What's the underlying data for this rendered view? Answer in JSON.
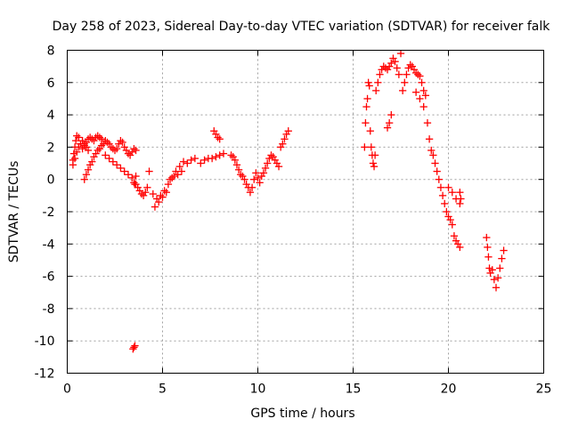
{
  "chart_data": {
    "type": "scatter",
    "title": "Day 258 of 2023, Sidereal Day-to-day VTEC variation (SDTVAR) for receiver falk",
    "xlabel": "GPS time / hours",
    "ylabel": "SDTVAR / TECUs",
    "xlim": [
      0,
      25
    ],
    "ylim": [
      -12,
      8
    ],
    "xticks": [
      0,
      5,
      10,
      15,
      20,
      25
    ],
    "yticks": [
      -12,
      -10,
      -8,
      -6,
      -4,
      -2,
      0,
      2,
      4,
      6,
      8
    ],
    "xtick_labels": [
      "0",
      "5",
      "10",
      "15",
      "20",
      "25"
    ],
    "ytick_labels": [
      "-12",
      "-10",
      "-8",
      "-6",
      "-4",
      "-2",
      "0",
      "2",
      "4",
      "6",
      "8"
    ],
    "grid": true,
    "marker": "+",
    "marker_color": "#ff0000",
    "series": [
      {
        "name": "SDTVAR",
        "x": [
          0.3,
          0.35,
          0.4,
          0.45,
          0.5,
          0.6,
          0.7,
          0.8,
          0.9,
          1.0,
          1.1,
          1.2,
          1.3,
          1.4,
          1.5,
          1.6,
          1.7,
          1.8,
          0.3,
          0.4,
          0.5,
          0.6,
          0.7,
          0.8,
          0.9,
          1.0,
          1.1,
          0.9,
          1.0,
          1.1,
          1.2,
          1.3,
          1.4,
          1.5,
          1.6,
          1.7,
          1.8,
          1.9,
          2.0,
          2.1,
          2.2,
          2.3,
          2.4,
          2.5,
          2.6,
          2.7,
          2.8,
          2.9,
          3.0,
          3.1,
          3.2,
          3.3,
          3.4,
          3.5,
          3.6,
          2.0,
          2.2,
          2.4,
          2.6,
          2.8,
          3.0,
          3.2,
          3.4,
          3.6,
          3.5,
          3.55,
          3.6,
          3.7,
          3.8,
          3.9,
          4.0,
          4.1,
          4.2,
          4.3,
          4.5,
          4.7,
          4.9,
          5.1,
          5.3,
          5.5,
          5.7,
          5.9,
          6.1,
          6.3,
          6.5,
          6.7,
          5.4,
          5.6,
          5.8,
          6.0,
          4.6,
          4.8,
          5.0,
          5.2,
          7.0,
          7.2,
          7.4,
          7.6,
          7.8,
          8.0,
          8.2,
          7.7,
          7.8,
          7.9,
          8.0,
          8.6,
          8.7,
          8.8,
          8.9,
          9.0,
          9.1,
          9.2,
          9.3,
          9.4,
          9.5,
          9.6,
          9.7,
          9.8,
          9.9,
          10.0,
          10.1,
          10.2,
          10.3,
          10.4,
          10.5,
          10.6,
          10.7,
          10.8,
          10.9,
          11.0,
          11.1,
          11.2,
          11.3,
          11.4,
          11.5,
          11.6,
          3.45,
          3.5,
          3.55,
          15.6,
          15.65,
          15.7,
          15.75,
          15.8,
          15.85,
          15.9,
          15.95,
          16.0,
          16.05,
          16.1,
          16.15,
          16.2,
          16.3,
          16.4,
          16.5,
          16.6,
          16.7,
          16.8,
          16.9,
          17.0,
          17.1,
          17.2,
          17.3,
          17.4,
          17.5,
          16.8,
          16.9,
          17.0,
          17.6,
          17.7,
          17.8,
          17.9,
          18.0,
          18.1,
          18.2,
          18.3,
          18.4,
          18.5,
          18.6,
          18.7,
          18.8,
          18.3,
          18.5,
          18.7,
          18.9,
          19.0,
          19.1,
          19.2,
          19.3,
          19.4,
          19.5,
          19.6,
          19.7,
          19.8,
          19.9,
          20.0,
          20.1,
          20.2,
          20.3,
          20.4,
          20.5,
          20.6,
          20.0,
          20.2,
          20.4,
          20.6,
          20.6,
          20.65,
          22.0,
          22.05,
          22.1,
          22.15,
          22.2,
          22.3,
          22.4,
          22.5,
          22.6,
          22.7,
          22.8,
          22.9
        ],
        "y": [
          1.2,
          1.6,
          2.0,
          2.4,
          2.7,
          2.6,
          2.2,
          1.9,
          2.1,
          2.3,
          2.5,
          2.6,
          2.5,
          2.4,
          2.6,
          2.7,
          2.6,
          2.5,
          0.9,
          1.3,
          1.7,
          2.0,
          2.2,
          2.4,
          2.2,
          2.0,
          1.8,
          0.0,
          0.3,
          0.6,
          0.9,
          1.1,
          1.4,
          1.6,
          1.8,
          1.9,
          2.1,
          2.2,
          2.4,
          2.3,
          2.2,
          2.0,
          1.9,
          1.8,
          1.9,
          2.2,
          2.4,
          2.3,
          2.0,
          1.8,
          1.6,
          1.5,
          1.7,
          1.9,
          1.8,
          1.5,
          1.3,
          1.1,
          0.9,
          0.7,
          0.5,
          0.3,
          0.1,
          0.2,
          -0.2,
          -0.3,
          -0.3,
          -0.5,
          -0.7,
          -0.9,
          -1.0,
          -0.8,
          -0.5,
          0.5,
          -0.9,
          -1.2,
          -1.0,
          -0.7,
          -0.3,
          0.1,
          0.5,
          0.8,
          1.1,
          1.0,
          1.2,
          1.3,
          0.0,
          0.2,
          0.3,
          0.5,
          -1.7,
          -1.4,
          -1.1,
          -0.8,
          1.0,
          1.2,
          1.3,
          1.3,
          1.4,
          1.5,
          1.6,
          3.0,
          2.8,
          2.6,
          2.5,
          1.5,
          1.4,
          1.2,
          0.9,
          0.6,
          0.3,
          0.2,
          0.0,
          -0.3,
          -0.5,
          -0.8,
          -0.5,
          0.0,
          0.4,
          0.1,
          -0.2,
          0.2,
          0.4,
          0.7,
          1.0,
          1.3,
          1.5,
          1.4,
          1.2,
          1.0,
          0.8,
          2.0,
          2.2,
          2.5,
          2.8,
          3.0,
          -10.5,
          -10.4,
          -10.3,
          2.0,
          3.5,
          4.5,
          5.0,
          6.0,
          5.8,
          3.0,
          2.0,
          1.5,
          1.0,
          0.8,
          1.5,
          5.5,
          6.0,
          6.5,
          6.8,
          7.0,
          6.9,
          6.8,
          7.0,
          7.2,
          7.5,
          7.3,
          6.9,
          6.5,
          7.8,
          3.2,
          3.5,
          4.0,
          5.5,
          6.0,
          6.5,
          6.9,
          7.1,
          7.0,
          6.8,
          6.6,
          6.5,
          6.4,
          6.0,
          5.5,
          5.2,
          5.4,
          5.0,
          4.5,
          3.5,
          2.5,
          1.8,
          1.5,
          1.0,
          0.5,
          0.0,
          -0.5,
          -1.0,
          -1.5,
          -2.0,
          -2.3,
          -2.5,
          -2.8,
          -3.5,
          -3.8,
          -4.0,
          -4.2,
          -0.5,
          -0.8,
          -1.2,
          -1.5,
          -0.8,
          -1.2,
          -3.6,
          -4.2,
          -4.8,
          -5.5,
          -5.8,
          -5.6,
          -6.2,
          -6.7,
          -6.1,
          -5.5,
          -4.9,
          -4.4
        ]
      }
    ]
  }
}
